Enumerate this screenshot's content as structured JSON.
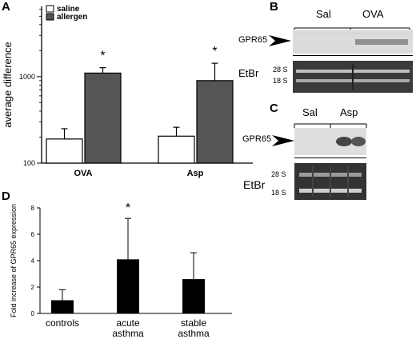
{
  "panels": {
    "A": {
      "letter": "A",
      "chart_data": {
        "type": "bar",
        "categories": [
          "OVA",
          "Asp"
        ],
        "series": [
          {
            "name": "saline",
            "values": [
              190,
              205
            ],
            "errors": [
              60,
              55
            ],
            "color": "#ffffff"
          },
          {
            "name": "allergen",
            "values": [
              1100,
              900
            ],
            "errors": [
              170,
              530
            ],
            "color": "#555555"
          }
        ],
        "ylabel": "average difference",
        "yscale": "log",
        "ylim": [
          100,
          6500
        ],
        "yticks": [
          100,
          1000
        ],
        "ytick_labels": [
          "100",
          "1000"
        ],
        "significance": [
          "*",
          "*"
        ],
        "legend_position": "top-left"
      }
    },
    "B": {
      "letter": "B",
      "groups": [
        "Sal",
        "OVA"
      ],
      "gene_label": "GPR65",
      "stain_label": "EtBr",
      "rrna": [
        "28 S",
        "18 S"
      ]
    },
    "C": {
      "letter": "C",
      "groups": [
        "Sal",
        "Asp"
      ],
      "gene_label": "GPR65",
      "stain_label": "EtBr",
      "rrna": [
        "28 S",
        "18 S"
      ]
    },
    "D": {
      "letter": "D",
      "chart_data": {
        "type": "bar",
        "categories": [
          "controls",
          "acute\nasthma",
          "stable\nasthma"
        ],
        "category_lines": [
          [
            "controls"
          ],
          [
            "acute",
            "asthma"
          ],
          [
            "stable",
            "asthma"
          ]
        ],
        "values": [
          1.0,
          4.1,
          2.6
        ],
        "errors": [
          0.8,
          3.1,
          2.0
        ],
        "ylabel": "Fold increase of GPR65  expression",
        "ylim": [
          0,
          8
        ],
        "yticks": [
          0,
          2,
          4,
          6,
          8
        ],
        "significance": [
          "",
          "*",
          ""
        ],
        "color": "#000000"
      }
    }
  }
}
